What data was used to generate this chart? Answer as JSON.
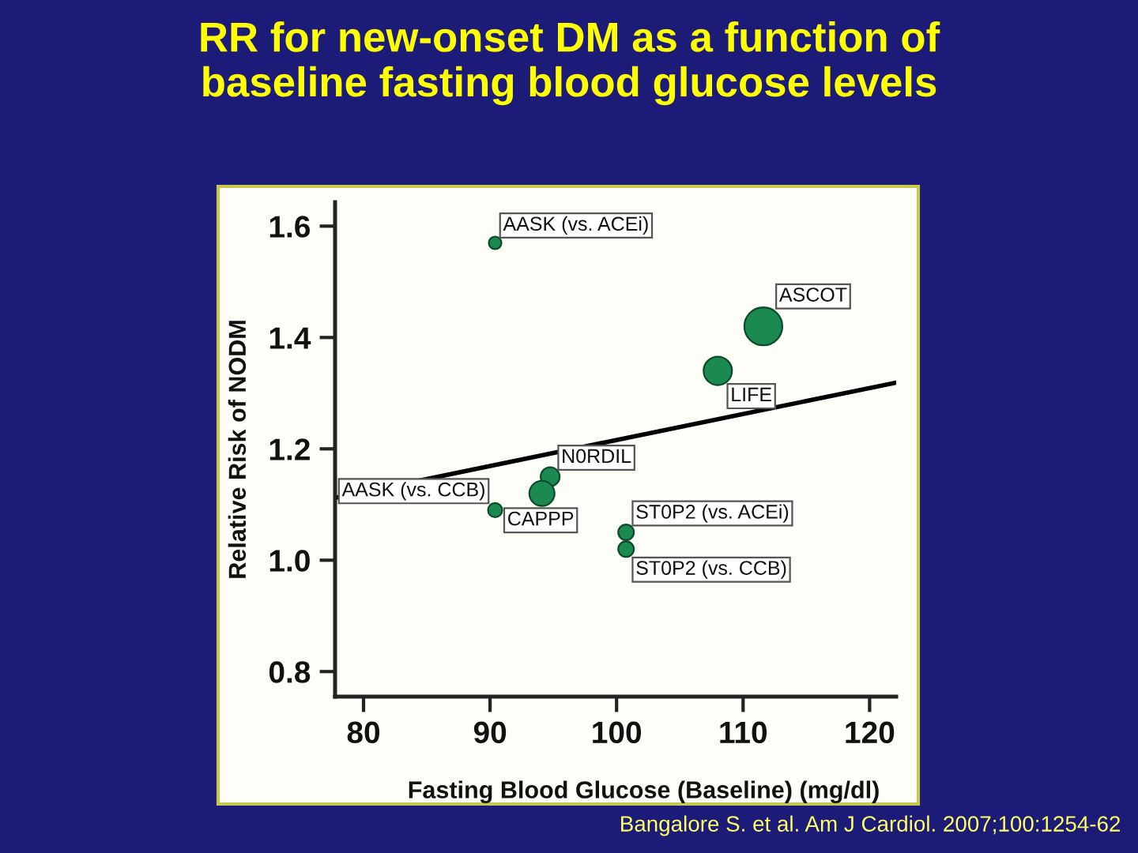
{
  "chart_data": {
    "type": "bubble",
    "title": "RR for new-onset DM as a function of\nbaseline fasting blood glucose levels",
    "xlabel": "Fasting Blood Glucose (Baseline) (mg/dl)",
    "ylabel": "Relative Risk of NODM",
    "series": [
      {
        "color": "#1a8a50",
        "marker": "circle",
        "x": [
          90.4,
          111.6,
          108.0,
          94.75,
          94.1,
          90.4,
          100.75,
          100.75
        ],
        "values": [
          1.57,
          1.42,
          1.34,
          1.15,
          1.12,
          1.09,
          1.05,
          1.02
        ],
        "sizes": [
          0.11,
          1,
          0.56,
          0.25,
          0.44,
          0.14,
          0.17,
          0.17
        ]
      },
      {
        "type": "line",
        "color": "#000000",
        "x": [
          77.75,
          122.1
        ],
        "values": [
          1.112,
          1.319
        ]
      }
    ],
    "annotations": [
      {
        "text": "AASK (vs. ACEi)",
        "x": 90.4,
        "y": 1.57
      },
      {
        "text": "ASCOT",
        "x": 111.6,
        "y": 1.42
      },
      {
        "text": "LIFE",
        "x": 108.0,
        "y": 1.34
      },
      {
        "text": "N0RDIL",
        "x": 94.75,
        "y": 1.15
      },
      {
        "text": "CAPPP",
        "x": 94.1,
        "y": 1.12
      },
      {
        "text": "AASK (vs. CCB)",
        "x": 90.4,
        "y": 1.09
      },
      {
        "text": "ST0P2 (vs. ACEi)",
        "x": 100.75,
        "y": 1.05
      },
      {
        "text": "ST0P2 (vs. CCB)",
        "x": 100.75,
        "y": 1.02
      },
      "Bangalore S. et al. Am J Cardiol. 2007;100:1254-62"
    ],
    "xlim": [
      77.75,
      122.1
    ],
    "ylim": [
      0.755,
      1.643
    ],
    "xticks": [
      80,
      90,
      100,
      110,
      120
    ],
    "yticks": [
      0.8,
      {
        "value": 1.0,
        "label": "1.0"
      },
      1.2,
      1.4,
      1.6
    ],
    "grid": false
  }
}
